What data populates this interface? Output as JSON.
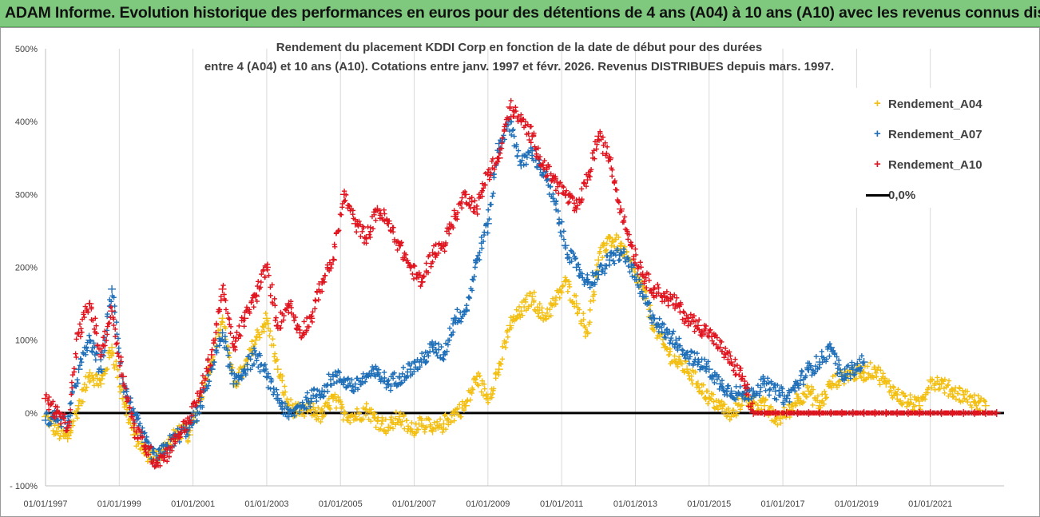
{
  "banner": {
    "text": "ADAM Informe. Evolution historique des performances en euros pour des détentions de 4 ans (A04) à 10 ans (A10) avec les revenus connus distribués"
  },
  "chart_data": {
    "type": "scatter",
    "title_line1": "Rendement du placement KDDI Corp en fonction de la date de début pour des durées",
    "title_line2": "entre 4 (A04) et 10 ans (A10). Cotations entre janv. 1997 et févr.  2026. Revenus DISTRIBUES depuis mars. 1997.",
    "xlabel": "",
    "ylabel": "",
    "xlim": [
      1997.0,
      2023.0
    ],
    "ylim": [
      -100,
      500
    ],
    "y_ticks": [
      -100,
      0,
      100,
      200,
      300,
      400,
      500
    ],
    "y_tick_labels": [
      "- 100%",
      "0%",
      "100%",
      "200%",
      "300%",
      "400%",
      "500%"
    ],
    "x_ticks": [
      1997,
      1999,
      2001,
      2003,
      2005,
      2007,
      2009,
      2011,
      2013,
      2015,
      2017,
      2019,
      2021
    ],
    "x_tick_labels": [
      "01/01/1997",
      "01/01/1999",
      "01/01/2001",
      "01/01/2003",
      "01/01/2005",
      "01/01/2007",
      "01/01/2009",
      "01/01/2011",
      "01/01/2013",
      "01/01/2015",
      "01/01/2017",
      "01/01/2019",
      "01/01/2021"
    ],
    "grid": true,
    "legend_position": "top-right",
    "legend": [
      {
        "label": "Rendement_A04",
        "color": "#f2bf12",
        "marker": "+"
      },
      {
        "label": "Rendement_A07",
        "color": "#1f6fb8",
        "marker": "+"
      },
      {
        "label": "Rendement_A10",
        "color": "#e0141e",
        "marker": "+"
      },
      {
        "label": "0,0%",
        "color": "#000000",
        "marker": "line"
      }
    ],
    "series": [
      {
        "name": "Rendement_A04",
        "color": "#f2bf12",
        "x": [
          1997.0,
          1997.3,
          1997.6,
          1997.9,
          1998.2,
          1998.5,
          1998.8,
          1999.1,
          1999.4,
          1999.7,
          2000.0,
          2000.3,
          2000.6,
          2000.9,
          2001.2,
          2001.5,
          2001.8,
          2002.1,
          2002.4,
          2002.7,
          2003.0,
          2003.3,
          2003.6,
          2003.9,
          2004.2,
          2004.5,
          2004.8,
          2005.1,
          2005.4,
          2005.7,
          2006.0,
          2006.3,
          2006.6,
          2006.9,
          2007.2,
          2007.5,
          2007.8,
          2008.1,
          2008.4,
          2008.7,
          2009.0,
          2009.3,
          2009.6,
          2009.9,
          2010.2,
          2010.5,
          2010.8,
          2011.1,
          2011.4,
          2011.7,
          2012.0,
          2012.3,
          2012.6,
          2012.9,
          2013.2,
          2013.5,
          2013.8,
          2014.1,
          2014.4,
          2014.7,
          2015.0,
          2015.3,
          2015.6,
          2015.9,
          2016.2,
          2016.5,
          2016.8,
          2017.1,
          2017.4,
          2017.7,
          2018.0,
          2018.3,
          2018.6,
          2018.9,
          2019.2,
          2019.5,
          2019.8,
          2020.1,
          2020.4,
          2020.7,
          2021.0,
          2021.3,
          2021.6,
          2021.9,
          2022.2,
          2022.5
        ],
        "values": [
          -5,
          -25,
          -35,
          10,
          55,
          40,
          90,
          20,
          -30,
          -55,
          -60,
          -45,
          -25,
          -30,
          20,
          70,
          130,
          40,
          60,
          100,
          130,
          60,
          10,
          0,
          5,
          -5,
          20,
          0,
          -5,
          5,
          -10,
          -20,
          -5,
          -25,
          -10,
          -25,
          -15,
          0,
          10,
          50,
          20,
          60,
          120,
          140,
          160,
          130,
          150,
          180,
          150,
          110,
          210,
          240,
          230,
          200,
          170,
          120,
          90,
          70,
          60,
          40,
          20,
          10,
          -5,
          20,
          15,
          10,
          -10,
          0,
          20,
          30,
          10,
          40,
          50,
          55,
          55,
          60,
          40,
          25,
          15,
          10,
          45,
          40,
          30,
          25,
          15,
          10
        ]
      },
      {
        "name": "Rendement_A07",
        "color": "#1f6fb8",
        "x": [
          1997.0,
          1997.3,
          1997.6,
          1997.9,
          1998.2,
          1998.5,
          1998.8,
          1999.1,
          1999.4,
          1999.7,
          2000.0,
          2000.3,
          2000.6,
          2000.9,
          2001.2,
          2001.5,
          2001.8,
          2002.1,
          2002.4,
          2002.7,
          2003.0,
          2003.3,
          2003.6,
          2003.9,
          2004.2,
          2004.5,
          2004.8,
          2005.1,
          2005.4,
          2005.7,
          2006.0,
          2006.3,
          2006.6,
          2006.9,
          2007.2,
          2007.5,
          2007.8,
          2008.1,
          2008.4,
          2008.7,
          2009.0,
          2009.3,
          2009.6,
          2009.9,
          2010.2,
          2010.5,
          2010.8,
          2011.1,
          2011.4,
          2011.7,
          2012.0,
          2012.3,
          2012.6,
          2012.9,
          2013.2,
          2013.5,
          2013.8,
          2014.1,
          2014.4,
          2014.7,
          2015.0,
          2015.3,
          2015.6,
          2015.9,
          2016.2,
          2016.5,
          2016.8,
          2017.1,
          2017.4,
          2017.7,
          2018.0,
          2018.3,
          2018.6,
          2018.9,
          2019.2
        ],
        "values": [
          -10,
          -5,
          -15,
          60,
          100,
          60,
          170,
          40,
          0,
          -40,
          -65,
          -45,
          -30,
          -20,
          10,
          60,
          110,
          40,
          60,
          80,
          50,
          20,
          -5,
          10,
          20,
          30,
          50,
          45,
          35,
          50,
          55,
          40,
          50,
          60,
          70,
          90,
          80,
          130,
          140,
          210,
          260,
          370,
          400,
          340,
          360,
          330,
          290,
          230,
          200,
          180,
          190,
          210,
          220,
          200,
          160,
          130,
          110,
          100,
          80,
          70,
          60,
          40,
          30,
          25,
          30,
          40,
          30,
          20,
          40,
          60,
          70,
          90,
          50,
          60,
          70
        ]
      },
      {
        "name": "Rendement_A10",
        "color": "#e0141e",
        "x": [
          1997.0,
          1997.3,
          1997.6,
          1997.9,
          1998.2,
          1998.5,
          1998.8,
          1999.1,
          1999.4,
          1999.7,
          2000.0,
          2000.3,
          2000.6,
          2000.9,
          2001.2,
          2001.5,
          2001.8,
          2002.1,
          2002.4,
          2002.7,
          2003.0,
          2003.3,
          2003.6,
          2003.9,
          2004.2,
          2004.5,
          2004.8,
          2005.1,
          2005.4,
          2005.7,
          2006.0,
          2006.3,
          2006.6,
          2006.9,
          2007.2,
          2007.5,
          2007.8,
          2008.1,
          2008.4,
          2008.7,
          2009.0,
          2009.3,
          2009.6,
          2009.9,
          2010.2,
          2010.5,
          2010.8,
          2011.1,
          2011.4,
          2011.7,
          2012.0,
          2012.3,
          2012.6,
          2012.9,
          2013.2,
          2013.5,
          2013.8,
          2014.1,
          2014.4,
          2014.7,
          2015.0,
          2015.3,
          2015.6,
          2015.9,
          2016.2,
          2016.5,
          2016.8,
          2017.1,
          2017.4,
          2017.7,
          2018.0,
          2018.3,
          2018.6,
          2018.9,
          2019.2,
          2019.5,
          2019.8,
          2020.1,
          2020.4,
          2020.7,
          2021.0,
          2021.3,
          2021.6,
          2021.9,
          2022.2,
          2022.5,
          2022.8
        ],
        "values": [
          20,
          0,
          -20,
          110,
          150,
          80,
          140,
          50,
          -20,
          -45,
          -68,
          -55,
          -30,
          -10,
          30,
          80,
          170,
          90,
          130,
          160,
          200,
          120,
          150,
          110,
          130,
          180,
          210,
          300,
          260,
          240,
          280,
          260,
          230,
          200,
          180,
          220,
          230,
          270,
          300,
          280,
          330,
          350,
          420,
          400,
          380,
          340,
          320,
          300,
          280,
          320,
          380,
          350,
          280,
          230,
          190,
          170,
          160,
          150,
          130,
          120,
          110,
          90,
          70,
          50,
          0,
          0,
          0,
          0,
          0,
          0,
          0,
          0,
          0,
          0,
          0,
          0,
          0,
          0,
          0,
          0,
          0,
          0,
          0,
          0,
          0,
          0,
          0
        ]
      }
    ]
  }
}
